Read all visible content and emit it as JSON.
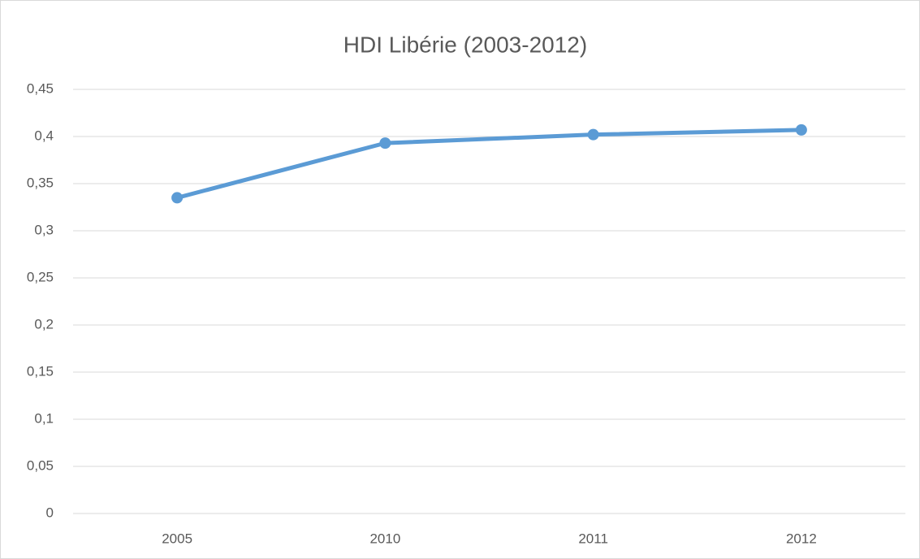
{
  "chart_data": {
    "type": "line",
    "title": "HDI Libérie (2003-2012)",
    "categories": [
      "2005",
      "2010",
      "2011",
      "2012"
    ],
    "values": [
      0.335,
      0.393,
      0.402,
      0.407
    ],
    "color": "#5b9bd5",
    "ylim": [
      0,
      0.45
    ],
    "yticks": [
      0,
      {
        "value": 0.05,
        "label": "0,05"
      },
      {
        "value": 0.1,
        "label": "0,1"
      },
      {
        "value": 0.15,
        "label": "0,15"
      },
      {
        "value": 0.2,
        "label": "0,2"
      },
      {
        "value": 0.25,
        "label": "0,25"
      },
      {
        "value": 0.3,
        "label": "0,3"
      },
      {
        "value": 0.35,
        "label": "0,35"
      },
      {
        "value": 0.4,
        "label": "0,4"
      },
      {
        "value": 0.45,
        "label": "0,45"
      }
    ],
    "grid": true
  }
}
